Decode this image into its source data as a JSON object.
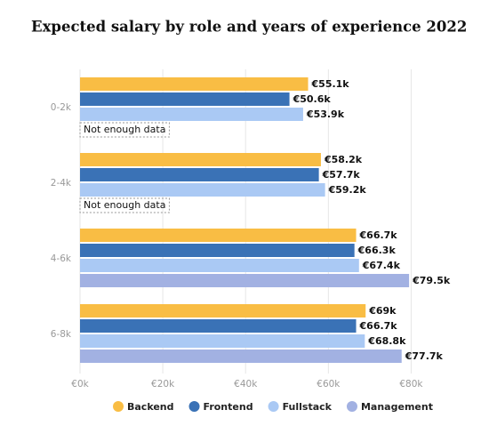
{
  "chart_data": {
    "type": "hbar",
    "title": "Expected salary by role and years of experience 2022",
    "categories": [
      "0-2k",
      "2-4k",
      "4-6k",
      "6-8k"
    ],
    "series": [
      {
        "name": "Backend",
        "color": "#f9bd44",
        "values": [
          55.1,
          58.2,
          66.7,
          69
        ],
        "value_labels": [
          "€55.1k",
          "€58.2k",
          "€66.7k",
          "€69k"
        ]
      },
      {
        "name": "Frontend",
        "color": "#3a72b6",
        "values": [
          50.6,
          57.7,
          66.3,
          66.7
        ],
        "value_labels": [
          "€50.6k",
          "€57.7k",
          "€66.3k",
          "€66.7k"
        ]
      },
      {
        "name": "Fullstack",
        "color": "#aac9f4",
        "values": [
          53.9,
          59.2,
          67.4,
          68.8
        ],
        "value_labels": [
          "€53.9k",
          "€59.2k",
          "€67.4k",
          "€68.8k"
        ]
      },
      {
        "name": "Management",
        "color": "#a2b1e2",
        "values": [
          null,
          null,
          79.5,
          77.7
        ],
        "value_labels": [
          "Not enough data",
          "Not enough data",
          "€79.5k",
          "€77.7k"
        ]
      }
    ],
    "xlim": [
      0,
      90
    ],
    "xticks": [
      {
        "value": 0,
        "label": "€0k"
      },
      {
        "value": 20,
        "label": "€20k"
      },
      {
        "value": 40,
        "label": "€40k"
      },
      {
        "value": 60,
        "label": "€60k"
      },
      {
        "value": 80,
        "label": "€80k"
      }
    ],
    "grid": true
  }
}
